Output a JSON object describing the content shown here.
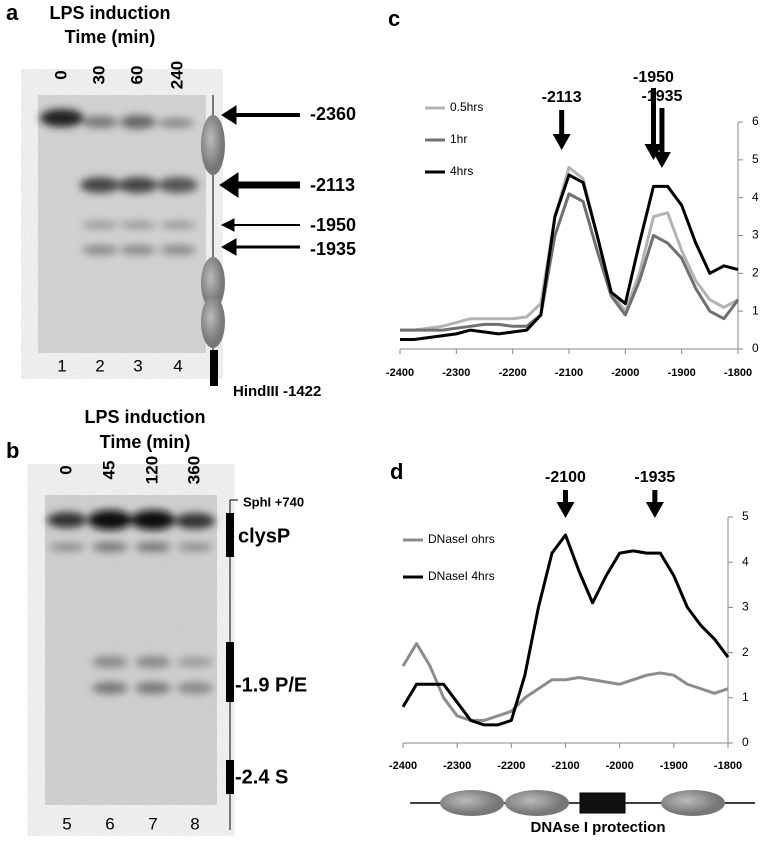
{
  "panel_a": {
    "label": "a",
    "title": [
      "LPS induction",
      "Time (min)"
    ],
    "lanes": [
      "0",
      "30",
      "60",
      "240"
    ],
    "lane_numbers": [
      "1",
      "2",
      "3",
      "4"
    ],
    "bands": [
      "-2360",
      "-2113",
      "-1950",
      "-1935"
    ],
    "footer": "HindIII -1422"
  },
  "panel_b": {
    "label": "b",
    "title": [
      "LPS induction",
      "Time (min)"
    ],
    "lanes": [
      "0",
      "45",
      "120",
      "360"
    ],
    "lane_numbers": [
      "5",
      "6",
      "7",
      "8"
    ],
    "site": "SphI +740",
    "regions": [
      "clysP",
      "-1.9 P/E",
      "-2.4 S"
    ]
  },
  "chart_data": [
    {
      "type": "line",
      "label": "c",
      "x": [
        -2400,
        -2375,
        -2350,
        -2325,
        -2300,
        -2275,
        -2250,
        -2225,
        -2200,
        -2175,
        -2150,
        -2125,
        -2100,
        -2075,
        -2050,
        -2025,
        -2000,
        -1975,
        -1950,
        -1925,
        -1900,
        -1875,
        -1850,
        -1825,
        -1800
      ],
      "series": [
        {
          "name": "0.5hrs",
          "color": "#b3b3b3",
          "values": [
            0.5,
            0.5,
            0.55,
            0.6,
            0.7,
            0.8,
            0.8,
            0.8,
            0.8,
            0.85,
            1.2,
            3.5,
            4.8,
            4.5,
            3.0,
            1.5,
            1.0,
            2.0,
            3.5,
            3.6,
            2.6,
            1.8,
            1.3,
            1.1,
            1.3
          ]
        },
        {
          "name": "1hr",
          "color": "#707070",
          "values": [
            0.5,
            0.5,
            0.5,
            0.5,
            0.55,
            0.6,
            0.65,
            0.65,
            0.6,
            0.6,
            0.9,
            3.0,
            4.1,
            3.9,
            2.6,
            1.4,
            0.9,
            1.8,
            3.0,
            2.8,
            2.4,
            1.6,
            1.0,
            0.8,
            1.3
          ]
        },
        {
          "name": "4hrs",
          "color": "#000000",
          "values": [
            0.25,
            0.25,
            0.3,
            0.35,
            0.4,
            0.5,
            0.45,
            0.4,
            0.45,
            0.5,
            0.9,
            3.5,
            4.6,
            4.4,
            3.0,
            1.5,
            1.2,
            2.8,
            4.3,
            4.3,
            3.8,
            2.8,
            2.0,
            2.2,
            2.1
          ]
        }
      ],
      "xlim": [
        -2400,
        -1800
      ],
      "xticks": [
        -2400,
        -2300,
        -2200,
        -2100,
        -2000,
        -1900,
        -1800
      ],
      "ylim": [
        0,
        6
      ],
      "yticks": [
        0,
        1,
        2,
        3,
        4,
        5,
        6
      ],
      "arrows": [
        -2113,
        -1950,
        -1935
      ]
    },
    {
      "type": "line",
      "label": "d",
      "x": [
        -2400,
        -2375,
        -2350,
        -2325,
        -2300,
        -2275,
        -2250,
        -2225,
        -2200,
        -2175,
        -2150,
        -2125,
        -2100,
        -2075,
        -2050,
        -2025,
        -2000,
        -1975,
        -1950,
        -1925,
        -1900,
        -1875,
        -1850,
        -1825,
        -1800
      ],
      "series": [
        {
          "name": "DNaseI ohrs",
          "color": "#8c8c8c",
          "values": [
            1.7,
            2.2,
            1.7,
            1.0,
            0.6,
            0.5,
            0.5,
            0.6,
            0.7,
            1.0,
            1.2,
            1.4,
            1.4,
            1.45,
            1.4,
            1.35,
            1.3,
            1.4,
            1.5,
            1.55,
            1.5,
            1.3,
            1.2,
            1.1,
            1.2
          ]
        },
        {
          "name": "DNaseI 4hrs",
          "color": "#000000",
          "values": [
            0.8,
            1.3,
            1.3,
            1.3,
            0.9,
            0.5,
            0.4,
            0.4,
            0.5,
            1.5,
            3.0,
            4.2,
            4.6,
            3.8,
            3.1,
            3.7,
            4.2,
            4.25,
            4.2,
            4.2,
            3.7,
            3.0,
            2.6,
            2.3,
            1.9
          ]
        }
      ],
      "xlim": [
        -2400,
        -1800
      ],
      "xticks": [
        -2400,
        -2300,
        -2200,
        -2100,
        -2000,
        -1900,
        -1800
      ],
      "ylim": [
        0,
        5
      ],
      "yticks": [
        0,
        1,
        2,
        3,
        4,
        5
      ],
      "arrows": [
        -2100,
        -1935
      ],
      "caption": "DNAse I protection"
    }
  ]
}
